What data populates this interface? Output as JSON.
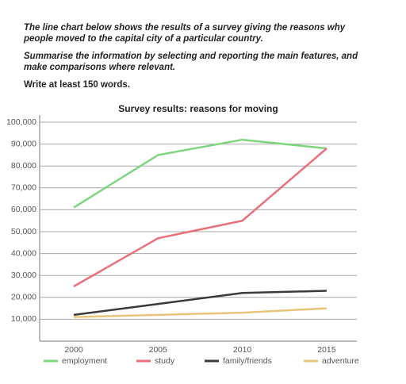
{
  "prompt": [
    "The line chart below shows the results of a survey giving the reasons why people moved to the capital city of a particular country.",
    "Summarise the information by selecting and reporting the main features, and make comparisons where relevant.",
    "Write at least 150 words."
  ],
  "chart_data": {
    "type": "line",
    "title": "Survey results: reasons for moving",
    "categories": [
      "2000",
      "2005",
      "2010",
      "2015"
    ],
    "series": [
      {
        "name": "employment",
        "color": "#7dd67d",
        "values": [
          61000,
          85000,
          92000,
          88000
        ]
      },
      {
        "name": "study",
        "color": "#e8707a",
        "values": [
          25000,
          47000,
          55000,
          88000
        ]
      },
      {
        "name": "family/friends",
        "color": "#3a3a3a",
        "values": [
          12000,
          17000,
          22000,
          23000
        ]
      },
      {
        "name": "adventure",
        "color": "#e8c47a",
        "values": [
          11000,
          12000,
          13000,
          15000
        ]
      }
    ],
    "ylim": [
      0,
      100000
    ],
    "yticks": [
      {
        "value": 10000,
        "label": "10,000"
      },
      {
        "value": 20000,
        "label": "20,000"
      },
      {
        "value": 30000,
        "label": "30,000"
      },
      {
        "value": 40000,
        "label": "40,000"
      },
      {
        "value": 50000,
        "label": "50,000"
      },
      {
        "value": 60000,
        "label": "60,000"
      },
      {
        "value": 70000,
        "label": "70,000"
      },
      {
        "value": 80000,
        "label": "80,000"
      },
      {
        "value": 90000,
        "label": "90,000"
      },
      {
        "value": 100000,
        "label": "100,000"
      }
    ],
    "grid": true,
    "legend": "bottom"
  }
}
